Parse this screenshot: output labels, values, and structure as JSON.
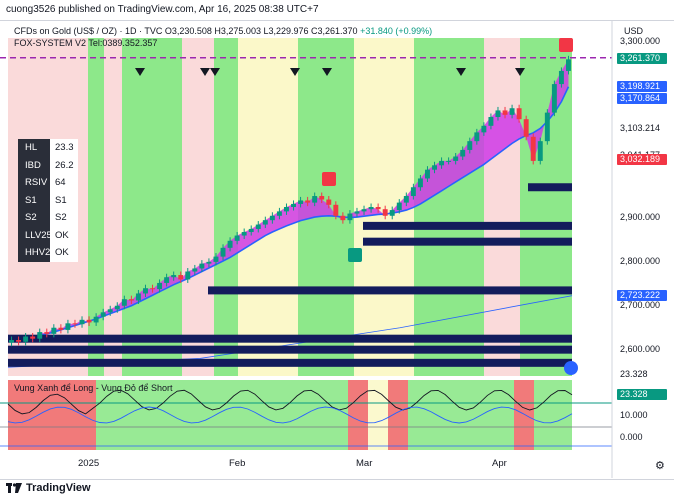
{
  "header": {
    "publish_text": "cuong3526 published on TradingView.com, Apr 16, 2025 08:38 UTC+7",
    "symbol": "CFDs on Gold (US$ / OZ) · 1D · TVC",
    "ohlc": "O3,230.508 H3,275.003 L3,229.976 C3,261.370",
    "change": "+31.840 (+0.99%)",
    "indicator": "FOX-SYSTEM V2 Tel:0389.352.357",
    "currency": "USD"
  },
  "colors": {
    "bg_green": "#8de88a",
    "bg_red": "#fadada",
    "bg_yellow": "#fbf8c9",
    "cloud": "#cf39e6",
    "ma_blue": "#2962ff",
    "bull": "#089981",
    "bear": "#f23645",
    "navy": "#131c5c",
    "dash_purple": "#9c27b0"
  },
  "stats": [
    {
      "k": "HL",
      "v": "23.3"
    },
    {
      "k": "IBD",
      "v": "26.2"
    },
    {
      "k": "RSIV",
      "v": "64"
    },
    {
      "k": "S1",
      "v": "S1"
    },
    {
      "k": "S2",
      "v": "S2"
    },
    {
      "k": "LLV25",
      "v": "OK"
    },
    {
      "k": "HHV25",
      "v": "OK"
    }
  ],
  "oscillator": {
    "title": "Vung Xanh để Long - Vung Đỏ để Short",
    "labels": [
      "23.328",
      "10.000",
      "0.000"
    ],
    "tag": "23.328"
  },
  "footer": {
    "logo": "TradingView"
  },
  "chart_data": {
    "type": "candlestick",
    "ylim": [
      2540,
      3310
    ],
    "yticks": [
      {
        "v": 3300,
        "label": "3,300.000"
      },
      {
        "v": 3103.214,
        "label": "3,103.214"
      },
      {
        "v": 3041.177,
        "label": "3,041.177"
      },
      {
        "v": 2900,
        "label": "2,900.000"
      },
      {
        "v": 2800,
        "label": "2,800.000"
      },
      {
        "v": 2700,
        "label": "2,700.000"
      },
      {
        "v": 2600,
        "label": "2,600.000"
      }
    ],
    "price_tags": [
      {
        "v": 3261.37,
        "label": "3,261.370",
        "color": "#089981"
      },
      {
        "v": 3198.921,
        "label": "3,198.921",
        "color": "#2962ff"
      },
      {
        "v": 3170.864,
        "label": "3,170.864",
        "color": "#2962ff"
      },
      {
        "v": 3032.189,
        "label": "3,032.189",
        "color": "#f23645"
      },
      {
        "v": 2723.222,
        "label": "2,723.222",
        "color": "#2962ff"
      }
    ],
    "x_labels": [
      "2025",
      "Feb",
      "Mar",
      "Apr"
    ],
    "closes": [
      2622,
      2618,
      2630,
      2625,
      2640,
      2636,
      2650,
      2645,
      2660,
      2658,
      2668,
      2662,
      2675,
      2685,
      2692,
      2700,
      2715,
      2712,
      2728,
      2740,
      2738,
      2752,
      2765,
      2770,
      2760,
      2778,
      2785,
      2796,
      2800,
      2812,
      2832,
      2848,
      2860,
      2868,
      2875,
      2885,
      2895,
      2905,
      2915,
      2925,
      2932,
      2940,
      2935,
      2950,
      2942,
      2930,
      2905,
      2895,
      2910,
      2915,
      2920,
      2925,
      2920,
      2905,
      2918,
      2935,
      2950,
      2970,
      2990,
      3010,
      3020,
      3030,
      3030,
      3040,
      3055,
      3075,
      3095,
      3110,
      3130,
      3145,
      3135,
      3150,
      3125,
      3085,
      3030,
      3075,
      3140,
      3205,
      3235,
      3261.37
    ],
    "ma_blue": [
      2620,
      2622,
      2625,
      2628,
      2632,
      2636,
      2640,
      2645,
      2650,
      2655,
      2660,
      2665,
      2670,
      2676,
      2682,
      2688,
      2694,
      2700,
      2708,
      2716,
      2724,
      2732,
      2740,
      2748,
      2755,
      2762,
      2770,
      2778,
      2786,
      2794,
      2802,
      2810,
      2820,
      2830,
      2840,
      2850,
      2860,
      2868,
      2875,
      2882,
      2888,
      2894,
      2898,
      2902,
      2904,
      2905,
      2904,
      2902,
      2901,
      2902,
      2904,
      2906,
      2908,
      2909,
      2911,
      2914,
      2918,
      2924,
      2932,
      2942,
      2952,
      2962,
      2972,
      2982,
      2992,
      3002,
      3012,
      3022,
      3034,
      3046,
      3058,
      3070,
      3080,
      3088,
      3094,
      3104,
      3120,
      3140,
      3165,
      3199
    ],
    "levels": [
      2970,
      2882,
      2846,
      2735,
      2625,
      2600,
      2570
    ]
  }
}
